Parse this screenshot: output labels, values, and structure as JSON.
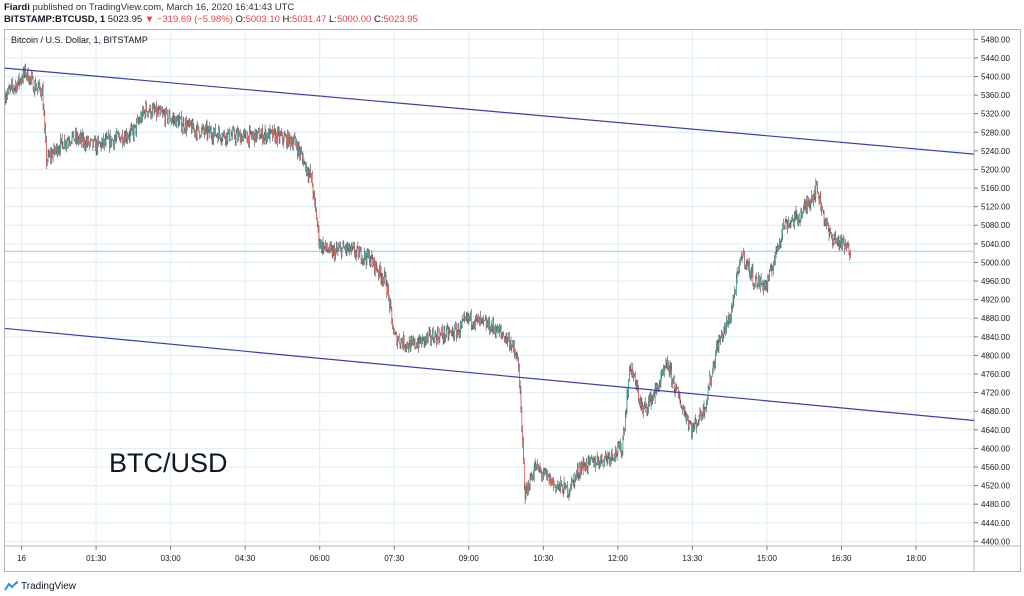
{
  "header": {
    "author": "Fiardi",
    "published_text": "published on TradingView.com, March 16, 2020 16:41:43 UTC",
    "symbol": "BITSTAMP:BTCUSD, 1",
    "last_price": "5023.95",
    "change": "▼ −319.69 (−5.98%)",
    "o_label": "O:",
    "o_value": "5003.10",
    "h_label": "H:",
    "h_value": "5031.47",
    "l_label": "L:",
    "l_value": "5000.00",
    "c_label": "C:",
    "c_value": "5023.95"
  },
  "footer": {
    "brand": "TradingView",
    "brand_icon": "tradingview-logo-icon"
  },
  "colors": {
    "up": "#26a69a",
    "down": "#ef5350",
    "candle": "#454545",
    "trendline": "#3f3fa8",
    "grid": "#dcedf5",
    "last_price_line": "#9fc7d8"
  },
  "chart_data": {
    "type": "candlestick",
    "title": "Bitcoin / U.S. Dollar, 1, BITSTAMP",
    "annotation": "BTC/USD",
    "ylim": [
      4390,
      5500
    ],
    "yticks": [
      "5480.00",
      "5440.00",
      "5400.00",
      "5360.00",
      "5320.00",
      "5280.00",
      "5240.00",
      "5200.00",
      "5160.00",
      "5120.00",
      "5080.00",
      "5040.00",
      "5000.00",
      "4960.00",
      "4920.00",
      "4880.00",
      "4840.00",
      "4800.00",
      "4760.00",
      "4720.00",
      "4680.00",
      "4640.00",
      "4600.00",
      "4560.00",
      "4520.00",
      "4480.00",
      "4440.00",
      "4400.00"
    ],
    "xticks": [
      "16",
      "01:30",
      "03:00",
      "04:30",
      "06:00",
      "07:30",
      "09:00",
      "10:30",
      "12:00",
      "13:30",
      "15:00",
      "16:30",
      "18:00"
    ],
    "x_start": "2020-03-15 23:40",
    "x_end": "2020-03-16 19:10",
    "last_price": 5023.95,
    "trendlines": [
      {
        "name": "upper channel",
        "points": [
          [
            "2020-03-15 23:40",
            5418
          ],
          [
            "2020-03-16 19:10",
            5233
          ]
        ]
      },
      {
        "name": "lower channel",
        "points": [
          [
            "2020-03-15 23:40",
            4858
          ],
          [
            "2020-03-16 19:10",
            4660
          ]
        ]
      }
    ],
    "price_path": [
      [
        "2020-03-15 23:40",
        5360
      ],
      [
        "2020-03-15 23:55",
        5385
      ],
      [
        "2020-03-16 00:05",
        5410
      ],
      [
        "2020-03-16 00:15",
        5380
      ],
      [
        "2020-03-16 00:25",
        5370
      ],
      [
        "2020-03-16 00:30",
        5220
      ],
      [
        "2020-03-16 00:45",
        5250
      ],
      [
        "2020-03-16 01:00",
        5270
      ],
      [
        "2020-03-16 01:30",
        5250
      ],
      [
        "2020-03-16 02:00",
        5270
      ],
      [
        "2020-03-16 02:15",
        5280
      ],
      [
        "2020-03-16 02:30",
        5330
      ],
      [
        "2020-03-16 02:45",
        5320
      ],
      [
        "2020-03-16 03:00",
        5310
      ],
      [
        "2020-03-16 03:30",
        5285
      ],
      [
        "2020-03-16 04:00",
        5275
      ],
      [
        "2020-03-16 04:30",
        5270
      ],
      [
        "2020-03-16 05:00",
        5275
      ],
      [
        "2020-03-16 05:30",
        5260
      ],
      [
        "2020-03-16 05:50",
        5180
      ],
      [
        "2020-03-16 06:00",
        5040
      ],
      [
        "2020-03-16 06:15",
        5020
      ],
      [
        "2020-03-16 06:30",
        5030
      ],
      [
        "2020-03-16 07:00",
        5010
      ],
      [
        "2020-03-16 07:20",
        4960
      ],
      [
        "2020-03-16 07:30",
        4840
      ],
      [
        "2020-03-16 07:50",
        4820
      ],
      [
        "2020-03-16 08:15",
        4840
      ],
      [
        "2020-03-16 08:45",
        4850
      ],
      [
        "2020-03-16 09:00",
        4880
      ],
      [
        "2020-03-16 09:30",
        4860
      ],
      [
        "2020-03-16 09:50",
        4830
      ],
      [
        "2020-03-16 10:00",
        4780
      ],
      [
        "2020-03-16 10:08",
        4500
      ],
      [
        "2020-03-16 10:20",
        4560
      ],
      [
        "2020-03-16 10:45",
        4520
      ],
      [
        "2020-03-16 11:00",
        4510
      ],
      [
        "2020-03-16 11:15",
        4560
      ],
      [
        "2020-03-16 11:45",
        4580
      ],
      [
        "2020-03-16 12:05",
        4600
      ],
      [
        "2020-03-16 12:15",
        4780
      ],
      [
        "2020-03-16 12:30",
        4680
      ],
      [
        "2020-03-16 12:45",
        4720
      ],
      [
        "2020-03-16 13:00",
        4780
      ],
      [
        "2020-03-16 13:15",
        4700
      ],
      [
        "2020-03-16 13:30",
        4640
      ],
      [
        "2020-03-16 13:45",
        4690
      ],
      [
        "2020-03-16 14:00",
        4820
      ],
      [
        "2020-03-16 14:15",
        4880
      ],
      [
        "2020-03-16 14:30",
        5020
      ],
      [
        "2020-03-16 14:45",
        4960
      ],
      [
        "2020-03-16 15:00",
        4950
      ],
      [
        "2020-03-16 15:20",
        5080
      ],
      [
        "2020-03-16 15:40",
        5100
      ],
      [
        "2020-03-16 16:00",
        5160
      ],
      [
        "2020-03-16 16:15",
        5060
      ],
      [
        "2020-03-16 16:30",
        5040
      ],
      [
        "2020-03-16 16:41",
        5023.95
      ]
    ]
  }
}
